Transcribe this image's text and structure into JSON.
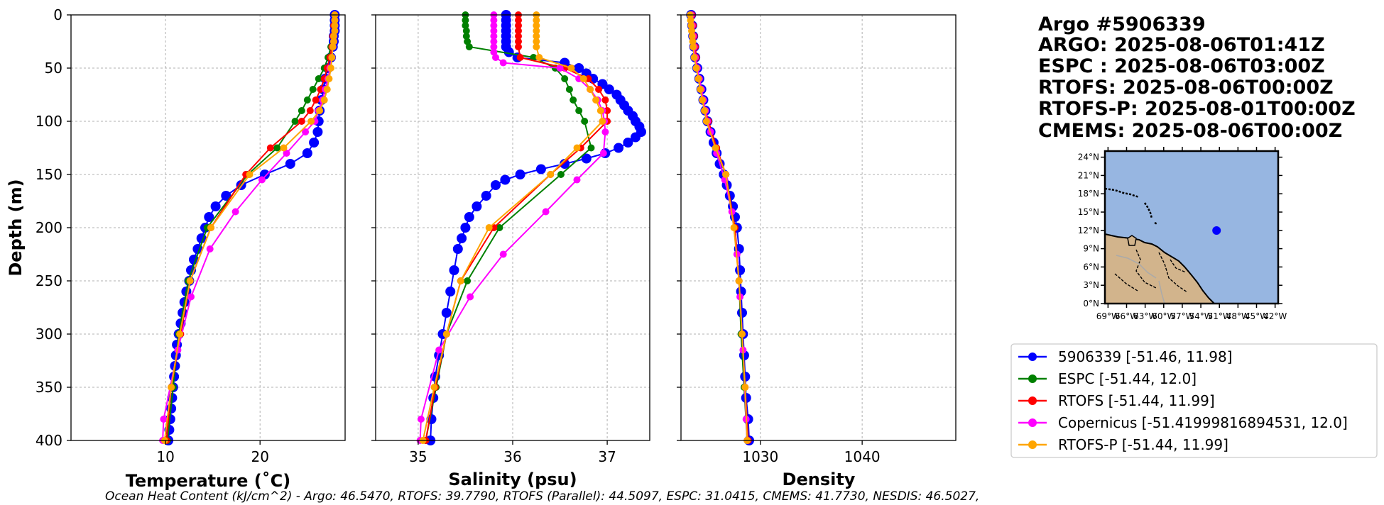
{
  "chart_data": [
    {
      "type": "line",
      "xlabel": "Temperature (˚C)",
      "ylabel": "Depth (m)",
      "xlim": [
        0,
        29
      ],
      "ylim": [
        400,
        0
      ],
      "xticks": [
        10,
        20
      ],
      "yticks": [
        0,
        50,
        100,
        150,
        200,
        250,
        300,
        350,
        400
      ],
      "grid": true,
      "series": [
        {
          "name": "5906339",
          "color": "#0000ff",
          "marker_size": 7,
          "depth": [
            0,
            5,
            10,
            15,
            20,
            25,
            30,
            40,
            50,
            60,
            70,
            80,
            90,
            100,
            110,
            120,
            130,
            140,
            150,
            160,
            170,
            180,
            190,
            200,
            210,
            220,
            230,
            240,
            250,
            260,
            270,
            280,
            290,
            300,
            310,
            320,
            330,
            340,
            350,
            360,
            370,
            380,
            390,
            400
          ],
          "values": [
            27.9,
            27.9,
            27.9,
            27.9,
            27.8,
            27.8,
            27.7,
            27.5,
            27.2,
            26.9,
            26.7,
            26.5,
            26.3,
            26.2,
            26.1,
            25.7,
            25.0,
            23.2,
            20.5,
            18.0,
            16.4,
            15.3,
            14.6,
            14.2,
            13.8,
            13.4,
            13.0,
            12.7,
            12.5,
            12.2,
            12.0,
            11.8,
            11.6,
            11.4,
            11.2,
            11.1,
            11.0,
            10.9,
            10.8,
            10.7,
            10.6,
            10.5,
            10.4,
            10.3
          ]
        },
        {
          "name": "ESPC",
          "color": "#008000",
          "marker_size": 5,
          "depth": [
            0,
            10,
            20,
            30,
            40,
            50,
            60,
            70,
            80,
            90,
            100,
            125,
            150,
            200,
            250,
            300,
            350,
            400
          ],
          "values": [
            27.9,
            27.8,
            27.7,
            27.5,
            27.2,
            26.8,
            26.2,
            25.6,
            25.0,
            24.4,
            23.7,
            21.8,
            18.7,
            14.4,
            12.4,
            11.4,
            10.8,
            10.2
          ]
        },
        {
          "name": "RTOFS",
          "color": "#ff0000",
          "marker_size": 5,
          "depth": [
            0,
            10,
            20,
            30,
            40,
            50,
            60,
            70,
            80,
            90,
            100,
            125,
            150,
            200,
            250,
            300,
            350,
            400
          ],
          "values": [
            27.9,
            27.8,
            27.7,
            27.6,
            27.4,
            27.1,
            26.8,
            26.4,
            25.9,
            25.3,
            24.4,
            21.1,
            18.5,
            14.8,
            12.6,
            11.6,
            10.6,
            10.1
          ]
        },
        {
          "name": "Copernicus",
          "color": "#ff00ff",
          "marker_size": 5,
          "depth": [
            0,
            5,
            10,
            15,
            20,
            25,
            30,
            40,
            50,
            60,
            70,
            80,
            90,
            100,
            110,
            130,
            155,
            185,
            220,
            265,
            315,
            380,
            400
          ],
          "values": [
            27.9,
            27.9,
            27.9,
            27.9,
            27.8,
            27.8,
            27.7,
            27.6,
            27.4,
            27.2,
            26.9,
            26.6,
            26.2,
            25.8,
            24.8,
            22.8,
            20.2,
            17.4,
            14.7,
            12.7,
            11.3,
            9.8,
            9.7
          ]
        },
        {
          "name": "RTOFS-P",
          "color": "#ffa500",
          "marker_size": 5,
          "depth": [
            0,
            5,
            10,
            15,
            20,
            25,
            30,
            40,
            50,
            60,
            70,
            80,
            90,
            100,
            125,
            150,
            200,
            250,
            300,
            350,
            400
          ],
          "values": [
            27.9,
            27.9,
            27.9,
            27.9,
            27.8,
            27.8,
            27.7,
            27.6,
            27.5,
            27.3,
            27.1,
            26.8,
            26.3,
            25.4,
            22.5,
            18.9,
            14.8,
            12.6,
            11.5,
            10.6,
            9.9
          ]
        }
      ]
    },
    {
      "type": "line",
      "xlabel": "Salinity (psu)",
      "ylabel": "",
      "xlim": [
        34.55,
        37.45
      ],
      "ylim": [
        400,
        0
      ],
      "xticks": [
        35,
        36,
        37
      ],
      "yticks": [
        0,
        50,
        100,
        150,
        200,
        250,
        300,
        350,
        400
      ],
      "grid": true,
      "series": [
        {
          "name": "5906339",
          "color": "#0000ff",
          "marker_size": 7,
          "depth": [
            0,
            5,
            10,
            15,
            20,
            25,
            30,
            35,
            40,
            45,
            50,
            55,
            60,
            65,
            70,
            75,
            80,
            85,
            90,
            95,
            100,
            105,
            110,
            115,
            120,
            125,
            130,
            135,
            140,
            145,
            150,
            155,
            160,
            170,
            180,
            190,
            200,
            210,
            220,
            240,
            260,
            280,
            300,
            320,
            340,
            360,
            380,
            400
          ],
          "values": [
            35.93,
            35.93,
            35.93,
            35.93,
            35.93,
            35.93,
            35.93,
            35.96,
            36.05,
            36.55,
            36.7,
            36.78,
            36.85,
            36.95,
            37.02,
            37.1,
            37.14,
            37.18,
            37.22,
            37.27,
            37.3,
            37.34,
            37.36,
            37.3,
            37.22,
            37.12,
            36.98,
            36.78,
            36.55,
            36.3,
            36.08,
            35.92,
            35.82,
            35.72,
            35.62,
            35.54,
            35.5,
            35.46,
            35.42,
            35.38,
            35.34,
            35.3,
            35.26,
            35.22,
            35.18,
            35.16,
            35.14,
            35.13
          ]
        },
        {
          "name": "ESPC",
          "color": "#008000",
          "marker_size": 5,
          "depth": [
            0,
            5,
            10,
            15,
            20,
            25,
            30,
            40,
            50,
            60,
            70,
            80,
            90,
            100,
            125,
            150,
            200,
            250,
            300,
            350,
            400
          ],
          "values": [
            35.5,
            35.5,
            35.5,
            35.51,
            35.51,
            35.52,
            35.54,
            36.22,
            36.45,
            36.55,
            36.6,
            36.64,
            36.7,
            36.76,
            36.83,
            36.51,
            35.86,
            35.52,
            35.3,
            35.19,
            35.08
          ]
        },
        {
          "name": "RTOFS",
          "color": "#ff0000",
          "marker_size": 5,
          "depth": [
            0,
            5,
            10,
            15,
            20,
            25,
            30,
            40,
            50,
            60,
            70,
            80,
            90,
            100,
            125,
            150,
            200,
            250,
            300,
            350,
            400
          ],
          "values": [
            36.06,
            36.06,
            36.06,
            36.06,
            36.06,
            36.06,
            36.06,
            36.08,
            36.55,
            36.8,
            36.91,
            36.98,
            37.0,
            37.0,
            36.72,
            36.4,
            35.8,
            35.45,
            35.3,
            35.18,
            35.08
          ]
        },
        {
          "name": "Copernicus",
          "color": "#ff00ff",
          "marker_size": 5,
          "depth": [
            0,
            5,
            10,
            15,
            20,
            25,
            30,
            35,
            40,
            45,
            50,
            60,
            70,
            80,
            90,
            100,
            110,
            130,
            155,
            185,
            225,
            265,
            315,
            380,
            400
          ],
          "values": [
            35.8,
            35.8,
            35.8,
            35.8,
            35.8,
            35.8,
            35.8,
            35.8,
            35.82,
            35.9,
            36.5,
            36.7,
            36.82,
            36.9,
            36.95,
            36.97,
            36.98,
            36.96,
            36.68,
            36.35,
            35.9,
            35.55,
            35.22,
            35.03,
            35.02
          ]
        },
        {
          "name": "RTOFS-P",
          "color": "#ffa500",
          "marker_size": 5,
          "depth": [
            0,
            5,
            10,
            15,
            20,
            25,
            30,
            40,
            50,
            60,
            70,
            80,
            90,
            100,
            125,
            150,
            200,
            250,
            300,
            350,
            400
          ],
          "values": [
            36.25,
            36.25,
            36.25,
            36.25,
            36.25,
            36.25,
            36.25,
            36.28,
            36.62,
            36.75,
            36.82,
            36.88,
            36.93,
            36.95,
            36.68,
            36.4,
            35.75,
            35.45,
            35.3,
            35.17,
            35.05
          ]
        }
      ]
    },
    {
      "type": "line",
      "xlabel": "Density",
      "ylabel": "",
      "xlim": [
        1022.2,
        1049.2
      ],
      "ylim": [
        400,
        0
      ],
      "xticks": [
        1030,
        1040
      ],
      "yticks": [
        0,
        50,
        100,
        150,
        200,
        250,
        300,
        350,
        400
      ],
      "grid": true,
      "series": [
        {
          "name": "5906339",
          "color": "#0000ff",
          "marker_size": 7,
          "depth": [
            0,
            10,
            20,
            30,
            40,
            50,
            60,
            70,
            80,
            90,
            100,
            110,
            120,
            130,
            140,
            150,
            160,
            170,
            180,
            190,
            200,
            220,
            240,
            260,
            280,
            300,
            320,
            340,
            360,
            380,
            400
          ],
          "values": [
            1023.2,
            1023.3,
            1023.4,
            1023.5,
            1023.6,
            1023.8,
            1024.0,
            1024.2,
            1024.4,
            1024.6,
            1024.8,
            1025.1,
            1025.4,
            1025.7,
            1026.0,
            1026.4,
            1026.7,
            1027.0,
            1027.3,
            1027.5,
            1027.7,
            1027.9,
            1028.0,
            1028.1,
            1028.2,
            1028.3,
            1028.4,
            1028.5,
            1028.6,
            1028.8,
            1028.9
          ]
        },
        {
          "name": "ESPC",
          "color": "#008000",
          "marker_size": 5,
          "depth": [
            0,
            10,
            20,
            30,
            40,
            50,
            60,
            70,
            80,
            90,
            100,
            125,
            150,
            200,
            250,
            300,
            350,
            400
          ],
          "values": [
            1023.2,
            1023.3,
            1023.4,
            1023.5,
            1023.6,
            1023.8,
            1024.0,
            1024.2,
            1024.4,
            1024.6,
            1024.8,
            1025.6,
            1026.6,
            1027.5,
            1027.9,
            1028.1,
            1028.4,
            1028.7
          ]
        },
        {
          "name": "RTOFS",
          "color": "#ff0000",
          "marker_size": 5,
          "depth": [
            0,
            10,
            20,
            30,
            40,
            50,
            60,
            70,
            80,
            90,
            100,
            125,
            150,
            200,
            250,
            300,
            350,
            400
          ],
          "values": [
            1023.3,
            1023.4,
            1023.5,
            1023.6,
            1023.7,
            1023.8,
            1024.0,
            1024.2,
            1024.4,
            1024.6,
            1024.9,
            1025.7,
            1026.6,
            1027.5,
            1027.9,
            1028.2,
            1028.5,
            1028.8
          ]
        },
        {
          "name": "Copernicus",
          "color": "#ff00ff",
          "marker_size": 5,
          "depth": [
            0,
            10,
            20,
            30,
            40,
            50,
            60,
            70,
            80,
            90,
            100,
            110,
            130,
            155,
            185,
            225,
            265,
            315,
            380,
            400
          ],
          "values": [
            1023.2,
            1023.3,
            1023.4,
            1023.5,
            1023.6,
            1023.8,
            1024.0,
            1024.2,
            1024.4,
            1024.6,
            1024.8,
            1025.1,
            1025.7,
            1026.5,
            1027.2,
            1027.7,
            1028.0,
            1028.3,
            1028.6,
            1028.7
          ]
        },
        {
          "name": "RTOFS-P",
          "color": "#ffa500",
          "marker_size": 5,
          "depth": [
            0,
            5,
            10,
            15,
            20,
            25,
            30,
            40,
            50,
            60,
            70,
            80,
            90,
            100,
            125,
            150,
            200,
            250,
            300,
            350,
            400
          ],
          "values": [
            1023.1,
            1023.15,
            1023.2,
            1023.25,
            1023.3,
            1023.35,
            1023.4,
            1023.5,
            1023.7,
            1023.9,
            1024.1,
            1024.3,
            1024.5,
            1024.7,
            1025.6,
            1026.6,
            1027.4,
            1027.9,
            1028.2,
            1028.5,
            1028.7
          ]
        }
      ]
    }
  ],
  "header": {
    "lines": [
      "Argo #5906339",
      "ARGO: 2025-08-06T01:41Z",
      "ESPC : 2025-08-06T03:00Z",
      "RTOFS: 2025-08-06T00:00Z",
      "RTOFS-P: 2025-08-01T00:00Z",
      "CMEMS: 2025-08-06T00:00Z"
    ]
  },
  "map": {
    "lat_ticks": [
      "24°N",
      "21°N",
      "18°N",
      "15°N",
      "12°N",
      "9°N",
      "6°N",
      "3°N",
      "0°N"
    ],
    "lon_ticks": [
      "69°W",
      "66°W",
      "63°W",
      "60°W",
      "57°W",
      "54°W",
      "51°W",
      "48°W",
      "45°W",
      "42°W"
    ],
    "lat_range": [
      0,
      25
    ],
    "lon_range": [
      -69.5,
      -41.5
    ],
    "float_position": {
      "lon": -51.46,
      "lat": 11.98
    },
    "ocean_color": "#97b6e1",
    "land_color": "#d2b48c",
    "float_color": "#0000ff"
  },
  "legend": {
    "entries": [
      {
        "label": "5906339 [-51.46, 11.98]",
        "color": "#0000ff"
      },
      {
        "label": "ESPC [-51.44, 12.0]",
        "color": "#008000"
      },
      {
        "label": "RTOFS [-51.44, 11.99]",
        "color": "#ff0000"
      },
      {
        "label": "Copernicus [-51.41999816894531, 12.0]",
        "color": "#ff00ff"
      },
      {
        "label": "RTOFS-P [-51.44, 11.99]",
        "color": "#ffa500"
      }
    ]
  },
  "footer": {
    "text": "Ocean Heat Content (kJ/cm^2) - Argo: 46.5470,  RTOFS: 39.7790,  RTOFS (Parallel): 44.5097,  ESPC: 31.0415,  CMEMS: 41.7730,  NESDIS: 46.5027,"
  }
}
